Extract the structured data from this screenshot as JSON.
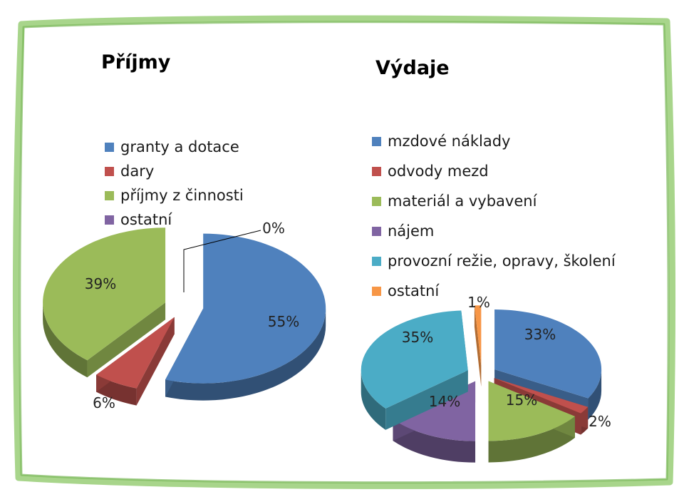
{
  "colors": {
    "frame": "#8cc46a",
    "blue": "#4f81bd",
    "red": "#c0504d",
    "green": "#9bbb59",
    "purple": "#8064a2",
    "teal": "#4bacc6",
    "orange": "#f79646"
  },
  "chart_data": [
    {
      "type": "pie",
      "title": "Příjmy",
      "legend_position": "top-left",
      "slices": [
        {
          "label": "granty a dotace",
          "value": 55,
          "display": "55%",
          "color": "#4f81bd"
        },
        {
          "label": "dary",
          "value": 6,
          "display": "6%",
          "color": "#c0504d"
        },
        {
          "label": "příjmy z činnosti",
          "value": 39,
          "display": "39%",
          "color": "#9bbb59"
        },
        {
          "label": "ostatní",
          "value": 0,
          "display": "0%",
          "color": "#8064a2"
        }
      ]
    },
    {
      "type": "pie",
      "title": "Výdaje",
      "legend_position": "top",
      "slices": [
        {
          "label": "mzdové náklady",
          "value": 33,
          "display": "33%",
          "color": "#4f81bd"
        },
        {
          "label": "odvody mezd",
          "value": 2,
          "display": "2%",
          "color": "#c0504d"
        },
        {
          "label": "materiál a vybavení",
          "value": 15,
          "display": "15%",
          "color": "#9bbb59"
        },
        {
          "label": "nájem",
          "value": 14,
          "display": "14%",
          "color": "#8064a2"
        },
        {
          "label": "provozní režie, opravy, školení",
          "value": 35,
          "display": "35%",
          "color": "#4bacc6"
        },
        {
          "label": "ostatní",
          "value": 1,
          "display": "1%",
          "color": "#f79646"
        }
      ]
    }
  ]
}
